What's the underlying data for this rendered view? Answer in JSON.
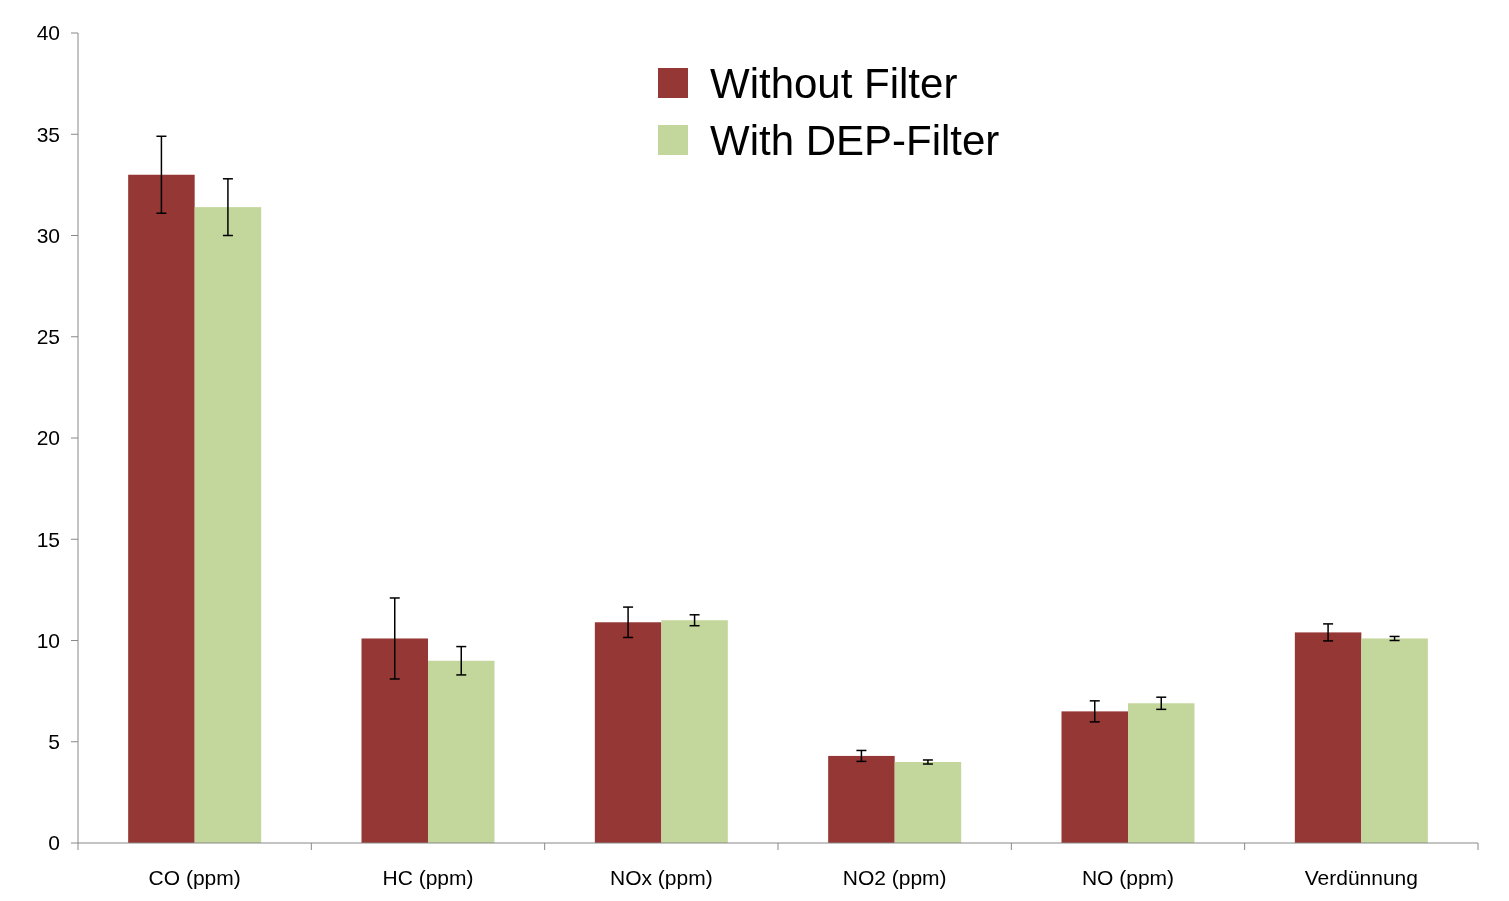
{
  "chart_data": {
    "type": "bar",
    "categories": [
      "CO (ppm)",
      "HC (ppm)",
      "NOx (ppm)",
      "NO2 (ppm)",
      "NO (ppm)",
      "Verdünnung"
    ],
    "series": [
      {
        "name": "Without Filter",
        "color": "#953735",
        "values": [
          33.0,
          10.1,
          10.9,
          4.3,
          6.5,
          10.4
        ],
        "errors": [
          1.9,
          2.0,
          0.75,
          0.27,
          0.52,
          0.42
        ]
      },
      {
        "name": "With DEP-Filter",
        "color": "#c3d69b",
        "values": [
          31.4,
          9.0,
          11.0,
          4.0,
          6.9,
          10.1
        ],
        "errors": [
          1.4,
          0.7,
          0.27,
          0.1,
          0.3,
          0.1
        ]
      }
    ],
    "ylim": [
      0,
      40
    ],
    "yticks": [
      0,
      5,
      10,
      15,
      20,
      25,
      30,
      35,
      40
    ],
    "grid": false,
    "legend": "top"
  }
}
